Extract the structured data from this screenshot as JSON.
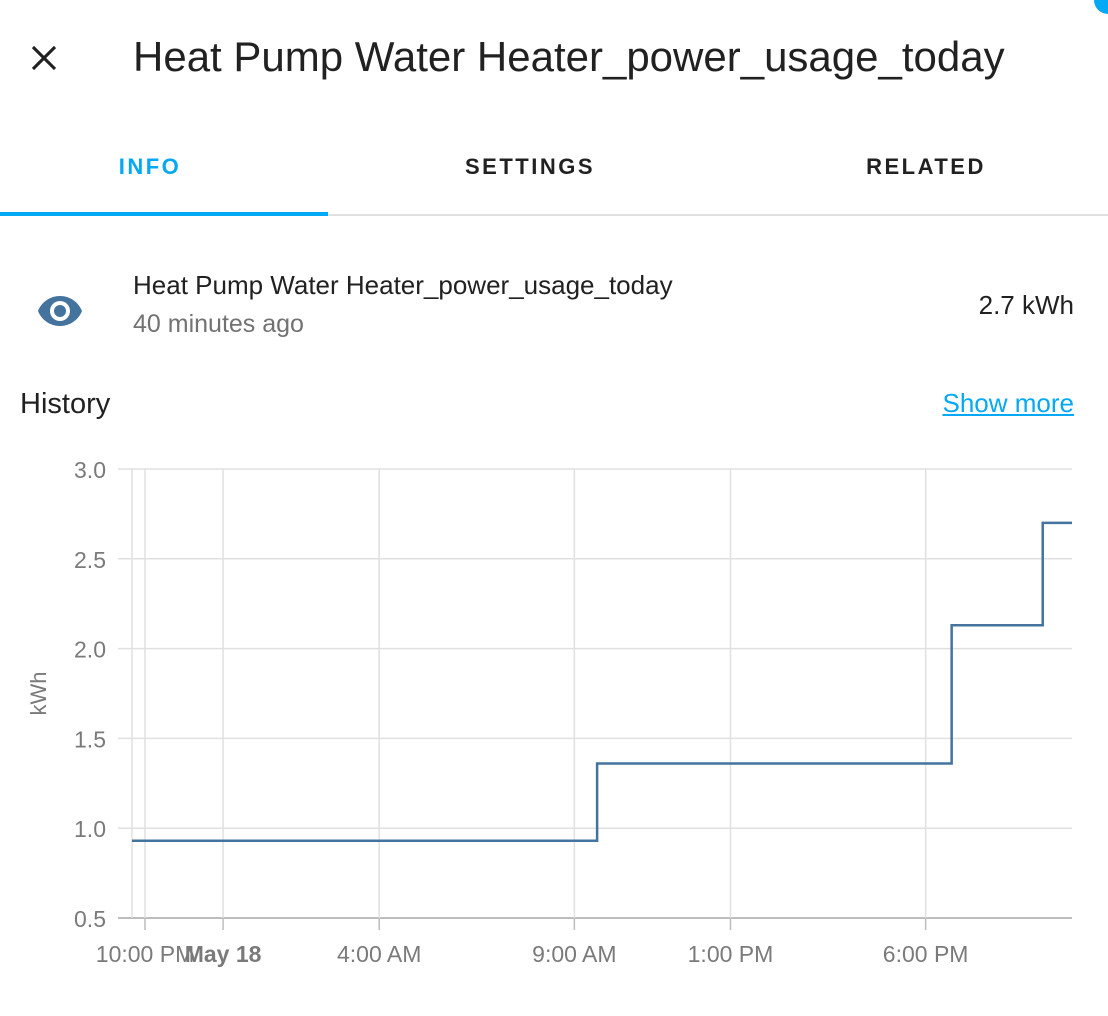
{
  "dialog": {
    "title": "Heat Pump Water Heater_power_usage_today",
    "close_icon": "close-icon"
  },
  "tabs": [
    {
      "label": "INFO",
      "active": true
    },
    {
      "label": "SETTINGS",
      "active": false
    },
    {
      "label": "RELATED",
      "active": false
    }
  ],
  "entity": {
    "icon": "eye-icon",
    "name": "Heat Pump Water Heater_power_usage_today",
    "last_changed": "40 minutes ago",
    "state": "2.7 kWh"
  },
  "history": {
    "title": "History",
    "show_more": "Show more"
  },
  "colors": {
    "accent": "#03a9f4",
    "line": "#44739e",
    "icon": "#44739e"
  },
  "chart_data": {
    "type": "line",
    "step": true,
    "ylabel": "kWh",
    "ylim": [
      0.5,
      3.0
    ],
    "yticks": [
      0.5,
      1.0,
      1.5,
      2.0,
      2.5,
      3.0
    ],
    "ytick_labels": [
      "0.5",
      "1.0",
      "1.5",
      "2.0",
      "2.5",
      "3.0"
    ],
    "xlim": [
      "May 17 21:40",
      "May 18 21:45"
    ],
    "xticks": [
      "May 17 22:00",
      "May 18 00:00",
      "May 18 04:00",
      "May 18 09:00",
      "May 18 13:00",
      "May 18 18:00"
    ],
    "xtick_labels": [
      "10:00 PM",
      "May 18",
      "4:00 AM",
      "9:00 AM",
      "1:00 PM",
      "6:00 PM"
    ],
    "grid": true,
    "series": [
      {
        "points": [
          {
            "x": "May 17 21:40",
            "y": 0.93
          },
          {
            "x": "May 18 09:35",
            "y": 1.36
          },
          {
            "x": "May 18 18:40",
            "y": 2.13
          },
          {
            "x": "May 18 21:00",
            "y": 2.7
          },
          {
            "x": "May 18 21:45",
            "y": 2.7
          }
        ]
      }
    ]
  }
}
